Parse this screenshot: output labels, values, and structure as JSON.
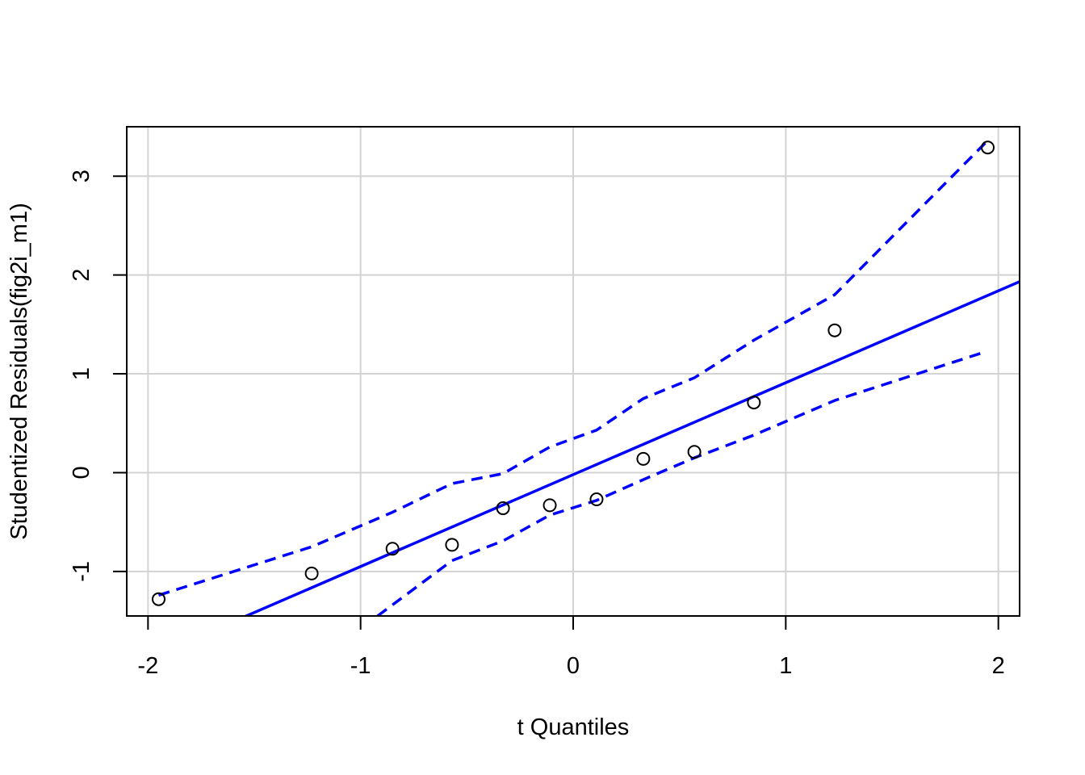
{
  "chart_data": {
    "type": "scatter",
    "title": "",
    "xlabel": "t Quantiles",
    "ylabel": "Studentized Residuals(fig2i_m1)",
    "xlim": [
      -2.1,
      2.1
    ],
    "ylim": [
      -1.45,
      3.5
    ],
    "x_ticks": [
      -2,
      -1,
      0,
      1,
      2
    ],
    "y_ticks": [
      -1,
      0,
      1,
      2,
      3
    ],
    "x_tick_labels": [
      "-2",
      "-1",
      "0",
      "1",
      "2"
    ],
    "y_tick_labels": [
      "-1",
      "0",
      "1",
      "2",
      "3"
    ],
    "grid": true,
    "points": {
      "x": [
        -1.95,
        -1.23,
        -0.85,
        -0.57,
        -0.33,
        -0.11,
        0.11,
        0.33,
        0.57,
        0.85,
        1.23,
        1.95
      ],
      "y": [
        -1.28,
        -1.02,
        -0.77,
        -0.73,
        -0.36,
        -0.33,
        -0.27,
        0.14,
        0.21,
        0.71,
        1.44,
        3.29
      ]
    },
    "reference_line": {
      "intercept": -0.02,
      "slope": 0.93,
      "color": "#0000ff"
    },
    "upper_band": {
      "x": [
        -1.95,
        -1.23,
        -0.85,
        -0.57,
        -0.33,
        -0.11,
        0.11,
        0.33,
        0.57,
        0.85,
        1.23,
        1.95
      ],
      "y": [
        -1.24,
        -0.75,
        -0.4,
        -0.11,
        -0.01,
        0.26,
        0.43,
        0.75,
        0.96,
        1.34,
        1.8,
        3.36
      ]
    },
    "lower_band": {
      "x": [
        -0.92,
        -0.57,
        -0.33,
        -0.11,
        0.11,
        0.33,
        0.57,
        0.85,
        1.23,
        1.92
      ],
      "y": [
        -1.45,
        -0.89,
        -0.69,
        -0.43,
        -0.28,
        -0.07,
        0.15,
        0.38,
        0.73,
        1.21
      ]
    },
    "colors": {
      "line": "#0000ff",
      "grid": "#d3d3d3",
      "points": "#000000"
    }
  }
}
